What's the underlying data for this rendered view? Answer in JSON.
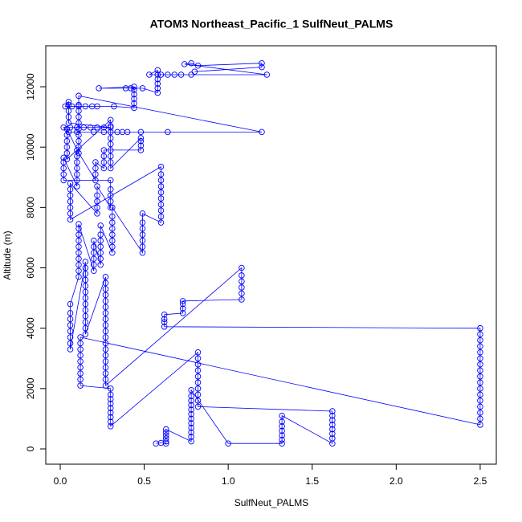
{
  "chart_data": {
    "type": "scatter",
    "title": "ATOM3 Northeast_Pacific_1 SulfNeut_PALMS",
    "x_label": "SulfNeut_PALMS",
    "y_label": "Altitude (m)",
    "color": "#0000ff",
    "lines": true,
    "xlim": [
      -0.086,
      2.596
    ],
    "ylim": [
      -506,
      13358
    ],
    "xticks": [
      {
        "value": 0,
        "label": "0.0"
      },
      0.5,
      {
        "value": 1,
        "label": "1.0"
      },
      1.5,
      {
        "value": 2,
        "label": "2.0"
      },
      2.5
    ],
    "yticks": [
      0,
      2000,
      4000,
      6000,
      8000,
      10000,
      12000
    ],
    "x": [
      0.57,
      0.6,
      0.63,
      0.63,
      0.63,
      0.63,
      0.63,
      0.63,
      0.78,
      0.78,
      0.78,
      0.78,
      0.78,
      0.78,
      0.78,
      0.78,
      0.78,
      0.78,
      0.78,
      0.78,
      1.0,
      1.32,
      1.32,
      1.32,
      1.32,
      1.32,
      1.32,
      1.32,
      1.62,
      1.62,
      1.62,
      1.62,
      1.62,
      1.62,
      1.62,
      1.62,
      0.82,
      0.82,
      0.82,
      0.82,
      0.82,
      0.82,
      0.82,
      0.82,
      0.82,
      0.82,
      0.3,
      0.3,
      0.3,
      0.3,
      0.3,
      0.3,
      0.3,
      0.3,
      0.3,
      0.12,
      0.12,
      0.12,
      0.12,
      0.12,
      0.12,
      0.12,
      0.12,
      0.12,
      2.5,
      2.5,
      2.5,
      2.5,
      2.5,
      2.5,
      2.5,
      2.5,
      2.5,
      2.5,
      2.5,
      2.5,
      2.5,
      2.5,
      2.5,
      2.5,
      2.5,
      0.62,
      0.62,
      0.62,
      0.62,
      0.73,
      0.73,
      0.73,
      0.73,
      1.08,
      1.08,
      1.08,
      1.08,
      1.08,
      1.08,
      0.27,
      0.27,
      0.27,
      0.27,
      0.27,
      0.27,
      0.27,
      0.27,
      0.27,
      0.27,
      0.27,
      0.27,
      0.27,
      0.27,
      0.27,
      0.27,
      0.27,
      0.27,
      0.27,
      0.15,
      0.15,
      0.15,
      0.15,
      0.15,
      0.15,
      0.15,
      0.15,
      0.15,
      0.15,
      0.15,
      0.15,
      0.15,
      0.06,
      0.06,
      0.06,
      0.06,
      0.06,
      0.06,
      0.06,
      0.06,
      0.11,
      0.11,
      0.11,
      0.11,
      0.11,
      0.11,
      0.11,
      0.11,
      0.11,
      0.11,
      0.2,
      0.2,
      0.2,
      0.2,
      0.2,
      0.2,
      0.24,
      0.24,
      0.24,
      0.24,
      0.24,
      0.24,
      0.24,
      0.31,
      0.31,
      0.31,
      0.31,
      0.31,
      0.31,
      0.31,
      0.31,
      0.49,
      0.49,
      0.49,
      0.49,
      0.49,
      0.49,
      0.49,
      0.6,
      0.6,
      0.6,
      0.6,
      0.6,
      0.6,
      0.6,
      0.6,
      0.6,
      0.6,
      0.06,
      0.06,
      0.06,
      0.06,
      0.06,
      0.06,
      0.06,
      0.22,
      0.22,
      0.22,
      0.22,
      0.22,
      0.3,
      0.3,
      0.3,
      0.3,
      0.3,
      0.02,
      0.02,
      0.02,
      0.02,
      0.02,
      0.1,
      0.1,
      0.1,
      0.1,
      0.1,
      0.1,
      0.1,
      0.21,
      0.21,
      0.21,
      0.21,
      0.26,
      0.26,
      0.26,
      0.26,
      0.48,
      0.48,
      0.48,
      0.48,
      0.3,
      0.3,
      0.3,
      0.3,
      0.3,
      0.3,
      0.3,
      0.3,
      0.3,
      0.04,
      0.04,
      0.04,
      0.04,
      0.04,
      0.04,
      0.11,
      0.11,
      0.11,
      0.11,
      0.11,
      0.11,
      0.11,
      0.11,
      0.11,
      0.11,
      1.2,
      0.64,
      0.48,
      0.4,
      0.37,
      0.34,
      0.26,
      0.2,
      0.1,
      0.05,
      0.02,
      0.06,
      0.1,
      0.14,
      0.18,
      0.22,
      0.26,
      0.3,
      0.05,
      0.05,
      0.05,
      0.05,
      0.05,
      0.03,
      0.07,
      0.11,
      0.15,
      0.19,
      0.22,
      0.32,
      0.44,
      0.44,
      0.44,
      0.44,
      0.44,
      0.44,
      0.23,
      0.39,
      0.42,
      0.49,
      0.58,
      0.58,
      0.58,
      0.58,
      0.58,
      0.58,
      0.53,
      0.6,
      0.64,
      0.68,
      0.72,
      0.78,
      1.23,
      0.74,
      0.78,
      0.82,
      1.2,
      1.2,
      0.8
    ],
    "values": [
      180,
      200,
      180,
      250,
      350,
      450,
      550,
      650,
      250,
      400,
      550,
      700,
      850,
      1000,
      1150,
      1300,
      1450,
      1600,
      1750,
      1950,
      180,
      180,
      300,
      450,
      600,
      750,
      900,
      1100,
      180,
      350,
      500,
      650,
      800,
      950,
      1100,
      1250,
      1400,
      1600,
      1800,
      2000,
      2200,
      2400,
      2600,
      2800,
      3000,
      3200,
      750,
      900,
      1050,
      1200,
      1350,
      1500,
      1650,
      1800,
      2000,
      2100,
      2300,
      2500,
      2700,
      2900,
      3100,
      3300,
      3500,
      3700,
      800,
      1000,
      1200,
      1400,
      1600,
      1800,
      2000,
      2200,
      2400,
      2600,
      2800,
      3000,
      3200,
      3400,
      3600,
      3800,
      4000,
      4050,
      4200,
      4300,
      4450,
      4500,
      4650,
      4800,
      4900,
      4950,
      5150,
      5350,
      5550,
      5750,
      6000,
      2100,
      2300,
      2500,
      2700,
      2900,
      3100,
      3300,
      3500,
      3700,
      3900,
      4100,
      4300,
      4500,
      4700,
      4900,
      5100,
      5300,
      5500,
      5700,
      3800,
      4000,
      4200,
      4400,
      4600,
      4800,
      5000,
      5200,
      5400,
      5600,
      5800,
      6000,
      6200,
      3300,
      3500,
      3700,
      3900,
      4100,
      4300,
      4500,
      4800,
      5700,
      5900,
      6100,
      6300,
      6500,
      6700,
      6900,
      7100,
      7300,
      7450,
      5900,
      6100,
      6300,
      6500,
      6700,
      6900,
      6100,
      6300,
      6500,
      6700,
      6900,
      7100,
      7400,
      6500,
      6700,
      6900,
      7100,
      7300,
      7500,
      7700,
      8000,
      6500,
      6700,
      6900,
      7100,
      7300,
      7500,
      7800,
      7500,
      7700,
      7900,
      8100,
      8300,
      8500,
      8700,
      8900,
      9100,
      9350,
      7600,
      7800,
      8000,
      8200,
      8400,
      8600,
      8800,
      7800,
      8000,
      8200,
      8400,
      8700,
      8000,
      8200,
      8400,
      8600,
      8900,
      8900,
      9100,
      9300,
      9500,
      9650,
      8700,
      8900,
      9100,
      9300,
      9500,
      9700,
      9900,
      8900,
      9100,
      9300,
      9500,
      9300,
      9500,
      9700,
      9900,
      9900,
      10050,
      10200,
      10300,
      9300,
      9500,
      9700,
      9900,
      10100,
      10300,
      10500,
      10700,
      10900,
      9600,
      9800,
      10000,
      10200,
      10400,
      10600,
      9800,
      10000,
      10200,
      10400,
      10600,
      10800,
      11000,
      11200,
      11400,
      11700,
      10500,
      10500,
      10500,
      10500,
      10500,
      10500,
      10500,
      10500,
      10500,
      10500,
      10650,
      10650,
      10650,
      10650,
      10650,
      10650,
      10650,
      10650,
      10800,
      11000,
      11200,
      11400,
      11500,
      11350,
      11350,
      11350,
      11350,
      11350,
      11350,
      11350,
      11300,
      11450,
      11600,
      11750,
      11900,
      12000,
      11950,
      11950,
      11950,
      11950,
      11800,
      11950,
      12100,
      12250,
      12400,
      12550,
      12400,
      12400,
      12400,
      12400,
      12400,
      12400,
      12400,
      12750,
      12780,
      12700,
      12780,
      12650,
      12500
    ]
  }
}
